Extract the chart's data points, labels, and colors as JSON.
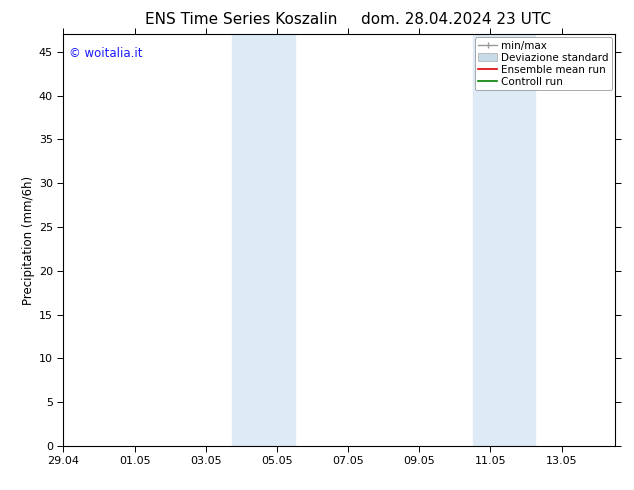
{
  "title_left": "ENS Time Series Koszalin",
  "title_right": "dom. 28.04.2024 23 UTC",
  "ylabel": "Precipitation (mm/6h)",
  "ylim": [
    0,
    47
  ],
  "yticks": [
    0,
    5,
    10,
    15,
    20,
    25,
    30,
    35,
    40,
    45
  ],
  "xtick_positions": [
    0,
    2,
    4,
    6,
    8,
    10,
    12,
    14
  ],
  "xtick_labels": [
    "29.04",
    "01.05",
    "03.05",
    "05.05",
    "07.05",
    "09.05",
    "11.05",
    "13.05"
  ],
  "xlim": [
    0,
    15.5
  ],
  "shaded_regions": [
    {
      "x_start": 4.75,
      "x_end": 6.5
    },
    {
      "x_start": 11.5,
      "x_end": 13.25
    }
  ],
  "shaded_color": "#deeaf5",
  "watermark_text": "© woitalia.it",
  "watermark_color": "#1a1aff",
  "background_color": "#ffffff",
  "plot_bg_color": "#ffffff",
  "legend_items": [
    {
      "label": "min/max",
      "color": "#aaaaaa"
    },
    {
      "label": "Deviazione standard",
      "color": "#c8dce8"
    },
    {
      "label": "Ensemble mean run",
      "color": "#dd0000"
    },
    {
      "label": "Controll run",
      "color": "#008000"
    }
  ],
  "title_fontsize": 11,
  "tick_fontsize": 8,
  "label_fontsize": 8.5,
  "legend_fontsize": 7.5,
  "watermark_fontsize": 8.5
}
